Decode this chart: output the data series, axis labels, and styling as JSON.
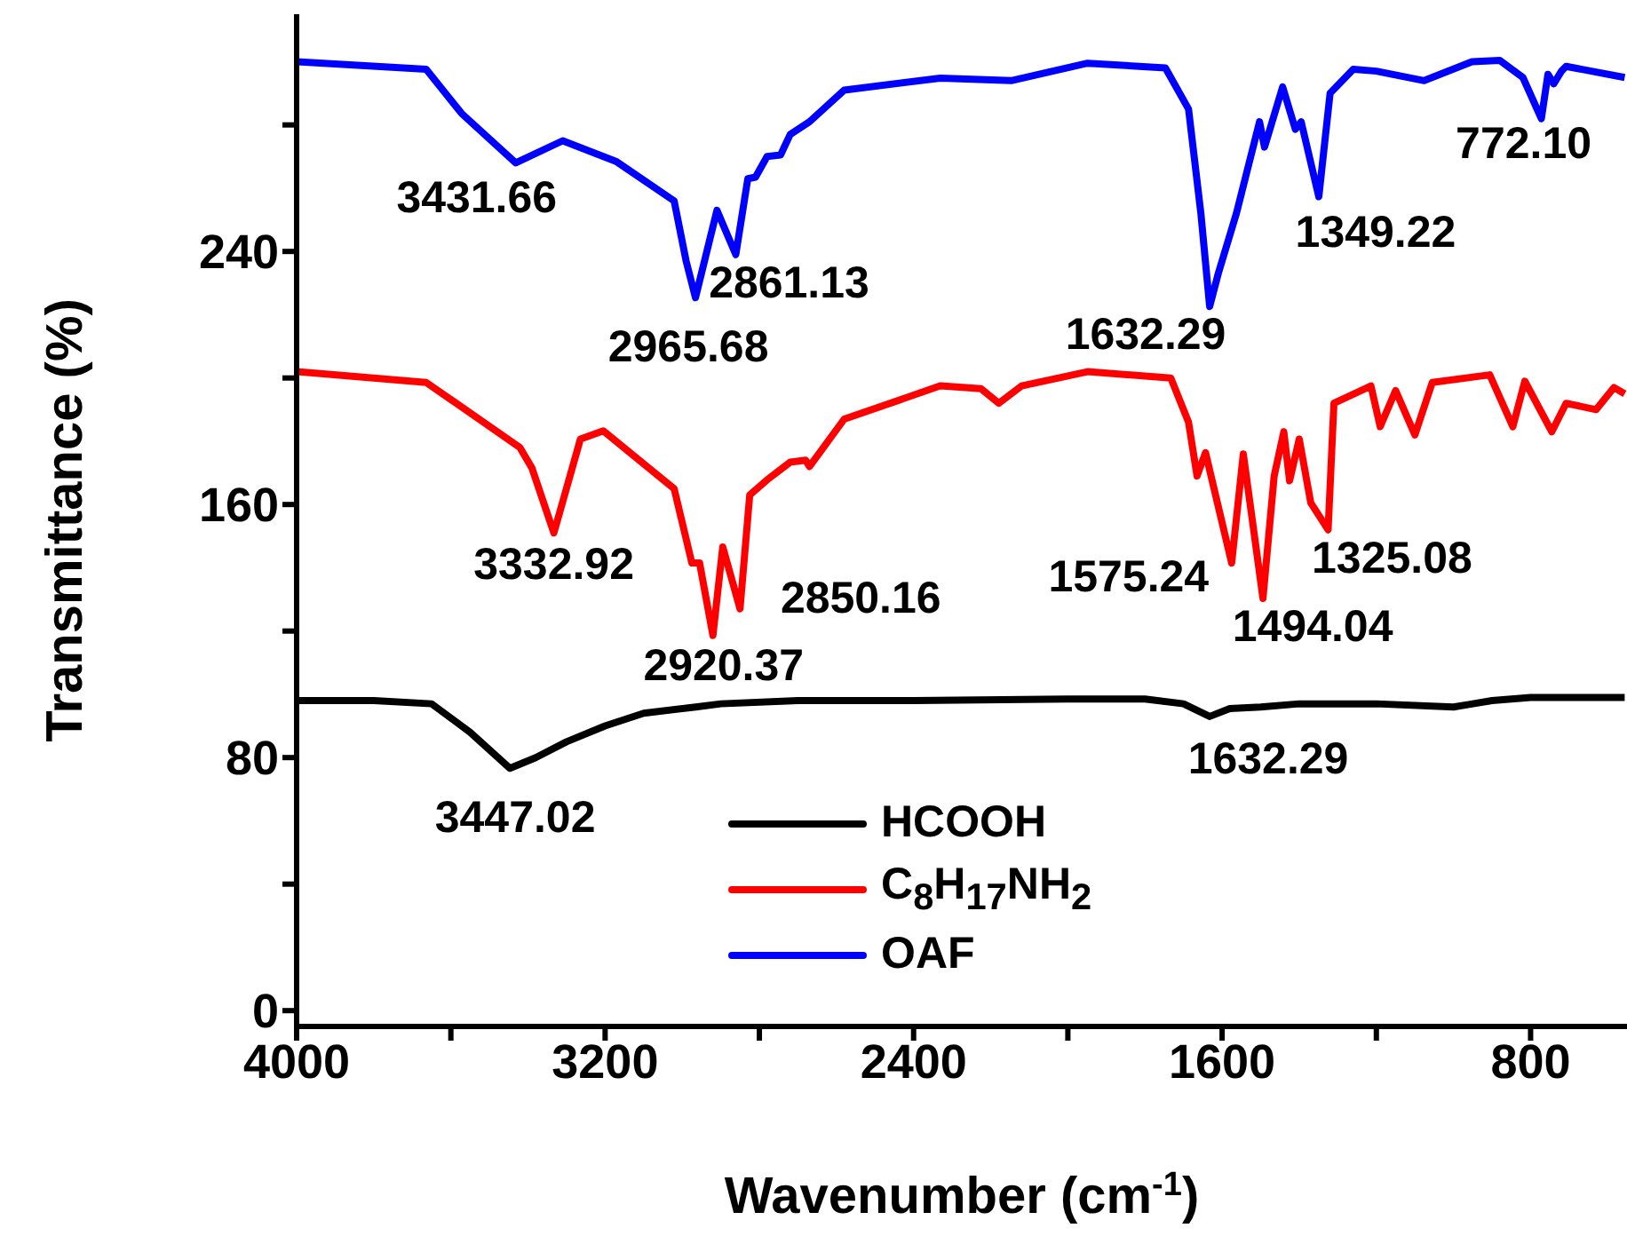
{
  "chart_data": {
    "type": "line",
    "xlabel": "Wavenumber (cm$^{-1}$)",
    "ylabel": "Transmittance (%)",
    "xlim": [
      4000,
      550
    ],
    "ylim": [
      -5,
      315
    ],
    "xticks": [
      4000,
      {
        "value": 3600,
        "label": null
      },
      3200,
      {
        "value": 2800,
        "label": null
      },
      2400,
      {
        "value": 2000,
        "label": null
      },
      1600,
      {
        "value": 1200,
        "label": null
      },
      800
    ],
    "yticks": [
      0,
      {
        "value": 40,
        "label": null
      },
      80,
      {
        "value": 120,
        "label": null
      },
      160,
      {
        "value": 200,
        "label": null
      },
      240,
      {
        "value": 280,
        "label": null
      }
    ],
    "grid": false,
    "legend": "bottom",
    "marker": "none",
    "line_style": "solid",
    "series": [
      {
        "name": "HCOOH",
        "color": "#000000",
        "x": [
          4000,
          3800,
          3650,
          3550,
          3447.02,
          3380,
          3300,
          3200,
          3100,
          2965,
          2900,
          2700,
          2400,
          2000,
          1800,
          1700,
          1632.29,
          1580,
          1500,
          1400,
          1200,
          1000,
          960,
          900,
          800,
          700,
          556
        ],
        "values": [
          98,
          98,
          97,
          88,
          76.6,
          80,
          85,
          90,
          94,
          96,
          97,
          98,
          98,
          98.5,
          98.5,
          97,
          93,
          95.5,
          96,
          97,
          97,
          96,
          96.8,
          98,
          99,
          99,
          99
        ]
      },
      {
        "name": "C$_{8}$H$_{17}$NH$_{2}$",
        "color": "#ff0000",
        "x": [
          4000,
          3664,
          3421,
          3390,
          3332.92,
          3264,
          3205,
          3021,
          2975,
          2955,
          2920.37,
          2895,
          2850.16,
          2825,
          2780,
          2720,
          2680,
          2670,
          2580,
          2331,
          2225,
          2179,
          2120,
          1949,
          1733,
          1687,
          1665,
          1643,
          1575.24,
          1545,
          1494.04,
          1465,
          1440,
          1425,
          1400,
          1370,
          1325.08,
          1310,
          1214,
          1190,
          1150,
          1100,
          1055,
          906,
          846,
          815,
          745,
          708,
          630,
          584,
          556
        ],
        "values": [
          202,
          198.6,
          178,
          171.6,
          151,
          180.7,
          183.3,
          165,
          141.5,
          141.5,
          118.6,
          146.6,
          127,
          163,
          167.8,
          173.4,
          174,
          172,
          187,
          197.5,
          196.6,
          192,
          197.5,
          202,
          200,
          186,
          169,
          176.4,
          141.5,
          176,
          130.3,
          169,
          183,
          167.5,
          180.7,
          160.5,
          152,
          192,
          197.5,
          184.6,
          196,
          182,
          198.6,
          201,
          184.6,
          199,
          183,
          192,
          190,
          197,
          195
        ]
      },
      {
        "name": "OAF",
        "color": "#0000ff",
        "x": [
          4000,
          3664,
          3572,
          3431.66,
          3310,
          3172,
          3021,
          2990,
          2965.68,
          2910,
          2861.13,
          2830,
          2810,
          2780,
          2745,
          2720,
          2670,
          2580,
          2331,
          2147,
          1949,
          1747,
          1687,
          1655,
          1632.29,
          1610,
          1563,
          1503,
          1490,
          1443,
          1410,
          1395,
          1349.22,
          1320,
          1260,
          1200,
          1076,
          952,
          880,
          820,
          772.1,
          755,
          740,
          720,
          708,
          556
        ],
        "values": [
          300,
          297.6,
          283.6,
          268,
          275,
          268.5,
          256,
          237,
          225.4,
          253,
          239,
          263,
          263.5,
          270,
          270.5,
          277,
          281,
          291,
          294.8,
          294,
          299.5,
          298,
          285,
          252,
          222.6,
          233,
          252,
          281,
          273,
          292,
          278.6,
          281,
          257.3,
          290,
          297.6,
          297,
          294,
          300,
          300.4,
          295,
          282,
          296,
          293,
          297,
          298.5,
          295
        ]
      }
    ],
    "annotations": [
      {
        "text": "3431.66",
        "x": 3431.66,
        "y": 268
      },
      {
        "text": "2965.68",
        "x": 2965.68,
        "y": 225.4
      },
      {
        "text": "2861.13",
        "x": 2861.13,
        "y": 239
      },
      {
        "text": "1632.29",
        "x": 1632.29,
        "y": 222.6
      },
      {
        "text": "1349.22",
        "x": 1349.22,
        "y": 257.3
      },
      {
        "text": "772.10",
        "x": 772.1,
        "y": 282
      },
      {
        "text": "3332.92",
        "x": 3332.92,
        "y": 151
      },
      {
        "text": "2920.37",
        "x": 2920.37,
        "y": 118.6
      },
      {
        "text": "2850.16",
        "x": 2850.16,
        "y": 127
      },
      {
        "text": "1575.24",
        "x": 1575.24,
        "y": 141.5
      },
      {
        "text": "1494.04",
        "x": 1494.04,
        "y": 130.3
      },
      {
        "text": "1325.08",
        "x": 1325.08,
        "y": 152
      },
      {
        "text": "3447.02",
        "x": 3447.02,
        "y": 76.6
      },
      {
        "text": "1632.29",
        "x": 1632.29,
        "y": 93
      }
    ]
  }
}
